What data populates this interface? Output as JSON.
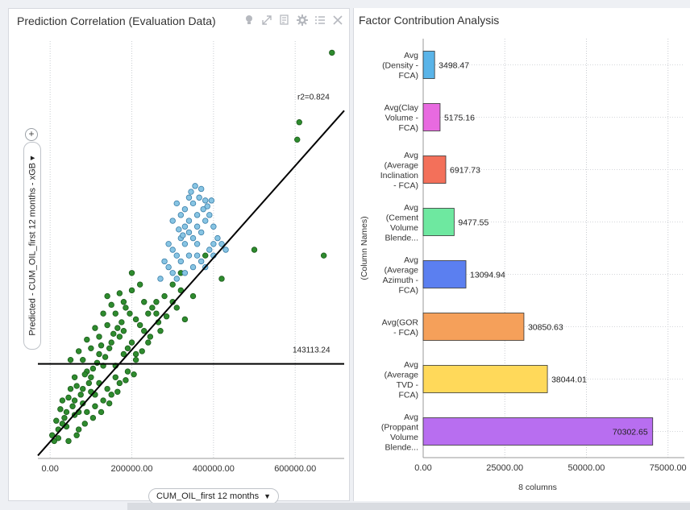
{
  "left_panel": {
    "title": "Prediction Correlation (Evaluation Data)",
    "toolbar_icons": [
      "lightbulb-icon",
      "expand-icon",
      "export-icon",
      "gear-icon",
      "list-icon",
      "close-icon"
    ],
    "x_selector_label": "CUM_OIL_first 12 months",
    "y_selector_label": "Predicted - CUM_OIL_first 12 months - xGB"
  },
  "right_panel": {
    "title": "Factor Contribution Analysis"
  },
  "chart_data": [
    {
      "type": "scatter",
      "title": "Prediction Correlation (Evaluation Data)",
      "xlabel": "CUM_OIL_first 12 months",
      "ylabel": "Predicted - CUM_OIL_first 12 months - xGB",
      "xlim": [
        -30000,
        720000
      ],
      "ylim": [
        -20000,
        700000
      ],
      "xticks": [
        0,
        200000,
        400000,
        600000
      ],
      "xtick_labels": [
        "0.00",
        "200000.00",
        "400000.00",
        "600000.00"
      ],
      "fit_line": {
        "x1": -30000,
        "y1": -15000,
        "x2": 720000,
        "y2": 580000,
        "label": "r2=0.824"
      },
      "horizontal_line": {
        "y": 143113.24,
        "label": "143113.24"
      },
      "series": [
        {
          "color": "#2e8b2e",
          "points": [
            [
              690000,
              680000
            ],
            [
              605000,
              530000
            ],
            [
              610000,
              560000
            ],
            [
              670000,
              330000
            ],
            [
              500000,
              340000
            ],
            [
              420000,
              290000
            ],
            [
              380000,
              330000
            ],
            [
              320000,
              300000
            ],
            [
              300000,
              280000
            ],
            [
              250000,
              240000
            ],
            [
              260000,
              230000
            ],
            [
              230000,
              200000
            ],
            [
              220000,
              280000
            ],
            [
              200000,
              300000
            ],
            [
              180000,
              200000
            ],
            [
              150000,
              180000
            ],
            [
              140000,
              260000
            ],
            [
              120000,
              160000
            ],
            [
              100000,
              120000
            ],
            [
              80000,
              100000
            ],
            [
              60000,
              80000
            ],
            [
              40000,
              60000
            ],
            [
              20000,
              30000
            ],
            [
              10000,
              10000
            ],
            [
              30000,
              40000
            ],
            [
              50000,
              150000
            ],
            [
              70000,
              60000
            ],
            [
              90000,
              130000
            ],
            [
              110000,
              90000
            ],
            [
              130000,
              140000
            ],
            [
              160000,
              120000
            ],
            [
              170000,
              190000
            ],
            [
              190000,
              170000
            ],
            [
              210000,
              150000
            ],
            [
              240000,
              180000
            ],
            [
              270000,
              200000
            ],
            [
              280000,
              260000
            ],
            [
              310000,
              240000
            ],
            [
              330000,
              220000
            ],
            [
              350000,
              260000
            ],
            [
              230000,
              250000
            ],
            [
              210000,
              220000
            ],
            [
              195000,
              230000
            ],
            [
              185000,
              240000
            ],
            [
              175000,
              215000
            ],
            [
              165000,
              205000
            ],
            [
              155000,
              195000
            ],
            [
              145000,
              170000
            ],
            [
              135000,
              155000
            ],
            [
              125000,
              175000
            ],
            [
              115000,
              145000
            ],
            [
              105000,
              135000
            ],
            [
              95000,
              110000
            ],
            [
              85000,
              125000
            ],
            [
              75000,
              90000
            ],
            [
              65000,
              105000
            ],
            [
              55000,
              70000
            ],
            [
              45000,
              85000
            ],
            [
              35000,
              50000
            ],
            [
              25000,
              65000
            ],
            [
              15000,
              45000
            ],
            [
              5000,
              20000
            ],
            [
              140000,
              100000
            ],
            [
              160000,
              140000
            ],
            [
              180000,
              160000
            ],
            [
              200000,
              180000
            ],
            [
              220000,
              210000
            ],
            [
              240000,
              230000
            ],
            [
              260000,
              250000
            ],
            [
              120000,
              110000
            ],
            [
              100000,
              95000
            ],
            [
              80000,
              75000
            ],
            [
              60000,
              55000
            ],
            [
              40000,
              35000
            ],
            [
              20000,
              15000
            ],
            [
              70000,
              30000
            ],
            [
              90000,
              60000
            ],
            [
              110000,
              70000
            ],
            [
              130000,
              80000
            ],
            [
              150000,
              90000
            ],
            [
              170000,
              110000
            ],
            [
              190000,
              130000
            ],
            [
              210000,
              160000
            ],
            [
              50000,
              100000
            ],
            [
              30000,
              80000
            ],
            [
              60000,
              120000
            ],
            [
              80000,
              150000
            ],
            [
              100000,
              170000
            ],
            [
              120000,
              190000
            ],
            [
              140000,
              210000
            ],
            [
              160000,
              230000
            ],
            [
              180000,
              250000
            ],
            [
              200000,
              270000
            ],
            [
              45000,
              10000
            ],
            [
              65000,
              20000
            ],
            [
              85000,
              40000
            ],
            [
              105000,
              50000
            ],
            [
              125000,
              60000
            ],
            [
              145000,
              75000
            ],
            [
              165000,
              95000
            ],
            [
              185000,
              115000
            ],
            [
              205000,
              125000
            ],
            [
              225000,
              165000
            ],
            [
              245000,
              190000
            ],
            [
              265000,
              215000
            ],
            [
              285000,
              225000
            ],
            [
              300000,
              250000
            ],
            [
              320000,
              270000
            ],
            [
              110000,
              205000
            ],
            [
              130000,
              230000
            ],
            [
              150000,
              245000
            ],
            [
              170000,
              265000
            ],
            [
              90000,
              185000
            ],
            [
              70000,
              165000
            ]
          ]
        },
        {
          "color": "#87c4e3",
          "points": [
            [
              300000,
              390000
            ],
            [
              310000,
              420000
            ],
            [
              320000,
              400000
            ],
            [
              330000,
              410000
            ],
            [
              340000,
              430000
            ],
            [
              345000,
              440000
            ],
            [
              350000,
              420000
            ],
            [
              355000,
              450000
            ],
            [
              360000,
              400000
            ],
            [
              365000,
              430000
            ],
            [
              370000,
              445000
            ],
            [
              375000,
              410000
            ],
            [
              380000,
              425000
            ],
            [
              390000,
              400000
            ],
            [
              400000,
              380000
            ],
            [
              410000,
              360000
            ],
            [
              420000,
              350000
            ],
            [
              430000,
              340000
            ],
            [
              360000,
              330000
            ],
            [
              370000,
              320000
            ],
            [
              380000,
              310000
            ],
            [
              390000,
              340000
            ],
            [
              350000,
              360000
            ],
            [
              340000,
              370000
            ],
            [
              330000,
              350000
            ],
            [
              320000,
              360000
            ],
            [
              310000,
              330000
            ],
            [
              300000,
              340000
            ],
            [
              290000,
              350000
            ],
            [
              280000,
              320000
            ],
            [
              300000,
              300000
            ],
            [
              310000,
              290000
            ],
            [
              330000,
              300000
            ],
            [
              350000,
              310000
            ],
            [
              400000,
              330000
            ],
            [
              370000,
              370000
            ],
            [
              360000,
              380000
            ],
            [
              380000,
              390000
            ],
            [
              290000,
              310000
            ],
            [
              270000,
              290000
            ],
            [
              340000,
              330000
            ],
            [
              320000,
              320000
            ],
            [
              360000,
              350000
            ],
            [
              400000,
              350000
            ],
            [
              340000,
              390000
            ],
            [
              330000,
              380000
            ],
            [
              315000,
              375000
            ],
            [
              325000,
              365000
            ],
            [
              385000,
              415000
            ],
            [
              395000,
              425000
            ]
          ]
        }
      ]
    },
    {
      "type": "bar",
      "orientation": "horizontal",
      "title": "Factor Contribution Analysis",
      "ylabel": "(Column Names)",
      "xlabel": "8 columns",
      "xlim": [
        0,
        80000
      ],
      "xticks": [
        0,
        25000,
        50000,
        75000
      ],
      "xtick_labels": [
        "0.00",
        "25000.00",
        "50000.00",
        "75000.00"
      ],
      "categories": [
        [
          "Avg",
          "(Density -",
          "FCA)"
        ],
        [
          "Avg(Clay",
          "Volume -",
          "FCA)"
        ],
        [
          "Avg",
          "(Average",
          "Inclination",
          "- FCA)"
        ],
        [
          "Avg",
          "(Cement",
          "Volume",
          "Blende..."
        ],
        [
          "Avg",
          "(Average",
          "Azimuth -",
          "FCA)"
        ],
        [
          "Avg(GOR",
          "- FCA)"
        ],
        [
          "Avg",
          "(Average",
          "TVD -",
          "FCA)"
        ],
        [
          "Avg",
          "(Proppant",
          "Volume",
          "Blende..."
        ]
      ],
      "values": [
        3498.47,
        5175.16,
        6917.73,
        9477.55,
        13094.94,
        30850.63,
        38044.01,
        70302.65
      ],
      "value_labels": [
        "3498.47",
        "5175.16",
        "6917.73",
        "9477.55",
        "13094.94",
        "30850.63",
        "38044.01",
        "70302.65"
      ],
      "colors": [
        "#5ab4e8",
        "#e86ae0",
        "#f3705a",
        "#6ee8a0",
        "#5b7ff0",
        "#f5a05a",
        "#ffd95a",
        "#b86ef0"
      ]
    }
  ]
}
